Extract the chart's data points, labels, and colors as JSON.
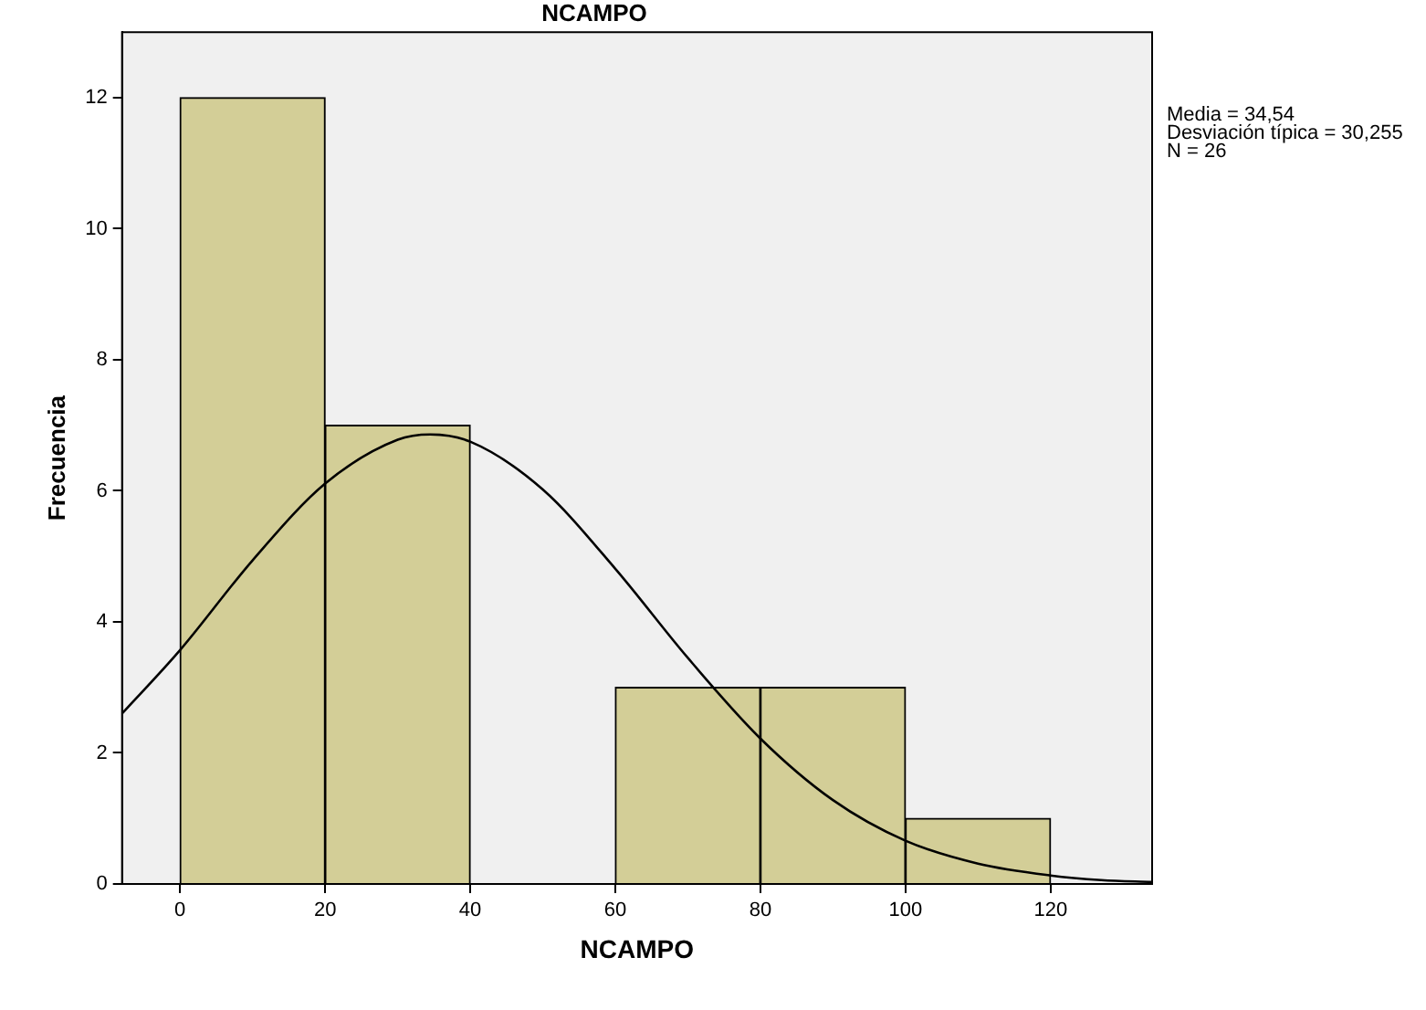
{
  "chart_data": {
    "type": "histogram",
    "title": "NCAMPO",
    "xlabel": "NCAMPO",
    "ylabel": "Frecuencia",
    "bins": [
      0,
      20,
      40,
      60,
      80,
      100,
      120
    ],
    "values": [
      12,
      7,
      0,
      3,
      3,
      1
    ],
    "color": "#d3ce97",
    "series": [
      {
        "type": "line",
        "color": "#000000",
        "x": [
          -8,
          0,
          10,
          20,
          30,
          34.5,
          40,
          50,
          60,
          70,
          80,
          90,
          100,
          110,
          120,
          127,
          134
        ],
        "values": [
          2.6,
          3.57,
          4.94,
          6.11,
          6.78,
          6.86,
          6.75,
          6.02,
          4.81,
          3.45,
          2.22,
          1.28,
          0.66,
          0.31,
          0.13,
          0.06,
          0.03
        ]
      }
    ],
    "xlim": [
      -8,
      134
    ],
    "xticks": [
      0,
      20,
      40,
      60,
      80,
      100,
      120
    ],
    "ylim": [
      0,
      13
    ],
    "yticks": [
      0,
      2,
      4,
      6,
      8,
      10,
      12
    ],
    "annotations": [
      "Media = 34,54",
      "Desviación típica = 30,255",
      "N = 26"
    ],
    "grid": false,
    "legend": false,
    "marker": "none",
    "line_style": "solid"
  }
}
